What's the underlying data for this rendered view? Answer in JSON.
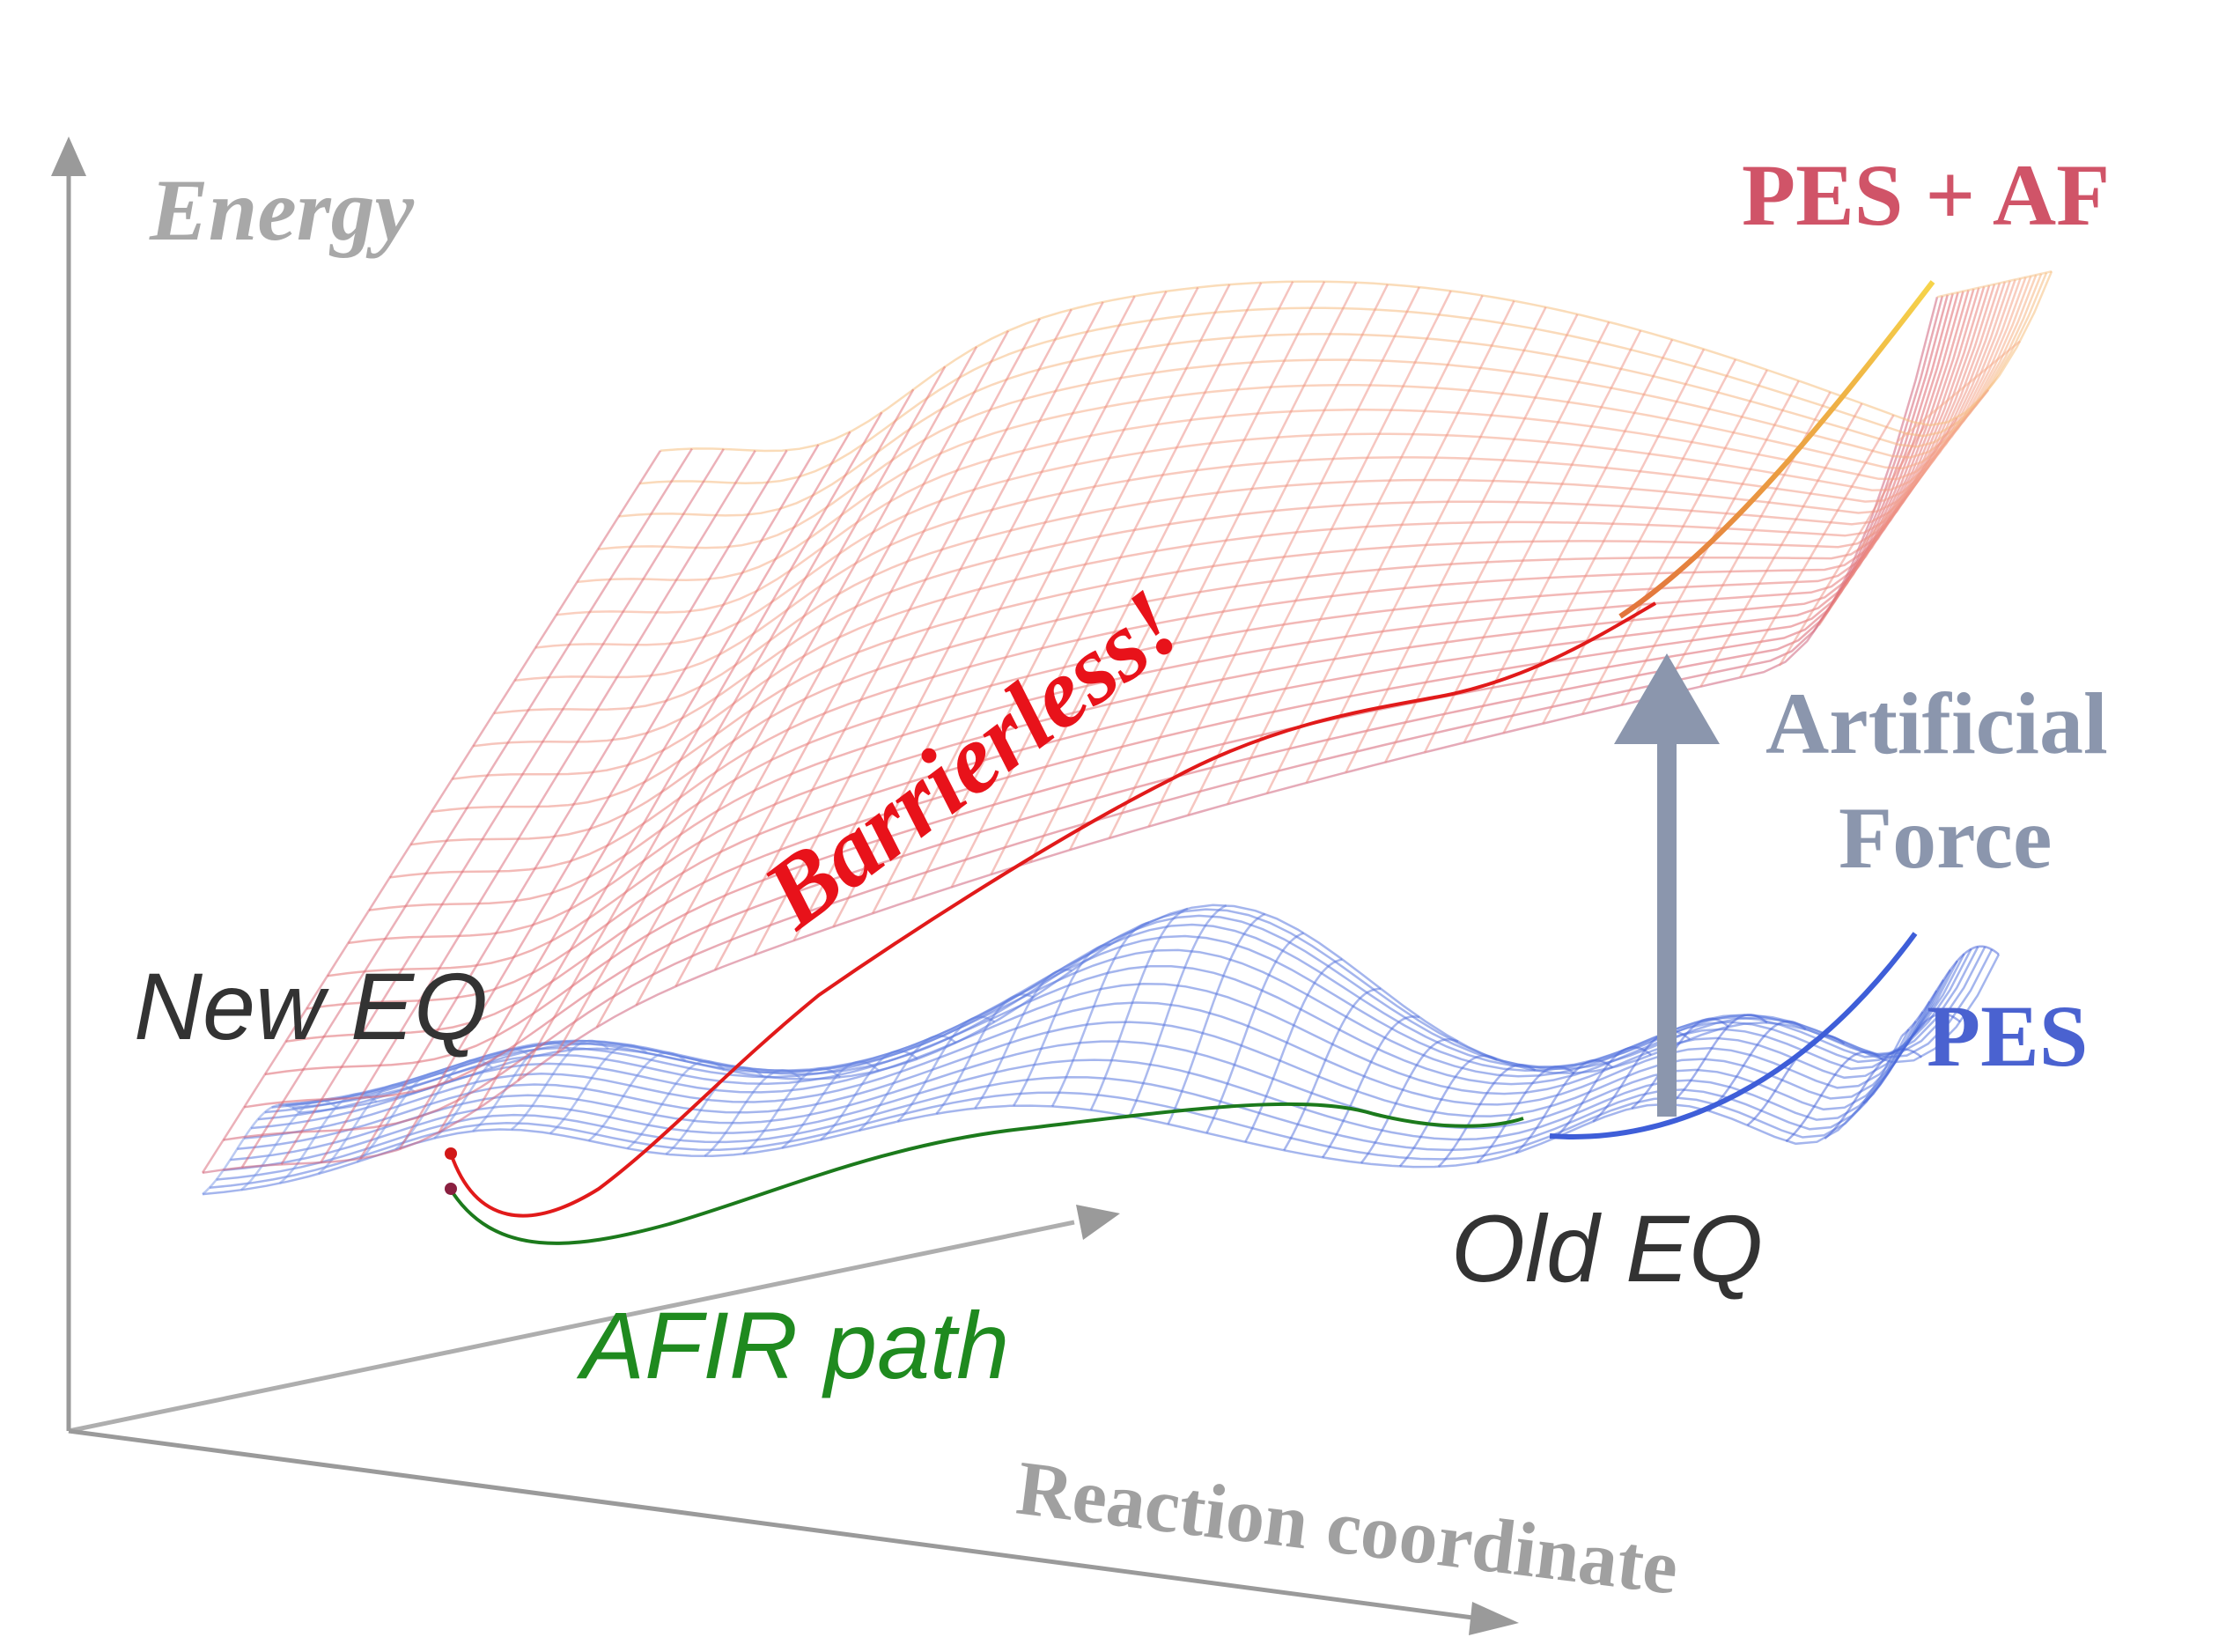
{
  "labels": {
    "energy": "Energy",
    "pes_af": "PES + AF",
    "artificial": "Artificial",
    "force": "Force",
    "pes": "PES",
    "barrierless": "Barrierless!",
    "new_eq": "New EQ",
    "old_eq": "Old EQ",
    "afir_path": "AFIR path",
    "reaction_coordinate": "Reaction coordinate"
  },
  "colors": {
    "axis": "#9a9a9a",
    "energy_label": "#a8a8a8",
    "pes_af_label": "#d05468",
    "artificial_force": "#8b96ad",
    "pes_label": "#4a62d0",
    "barrierless": "#e8121a",
    "eq_label": "#333333",
    "afir_path": "#1f8a1f",
    "red_path": "#e11a1a",
    "green_path": "#1c7a1c",
    "reaction_coordinate": "#a0a0a0"
  }
}
